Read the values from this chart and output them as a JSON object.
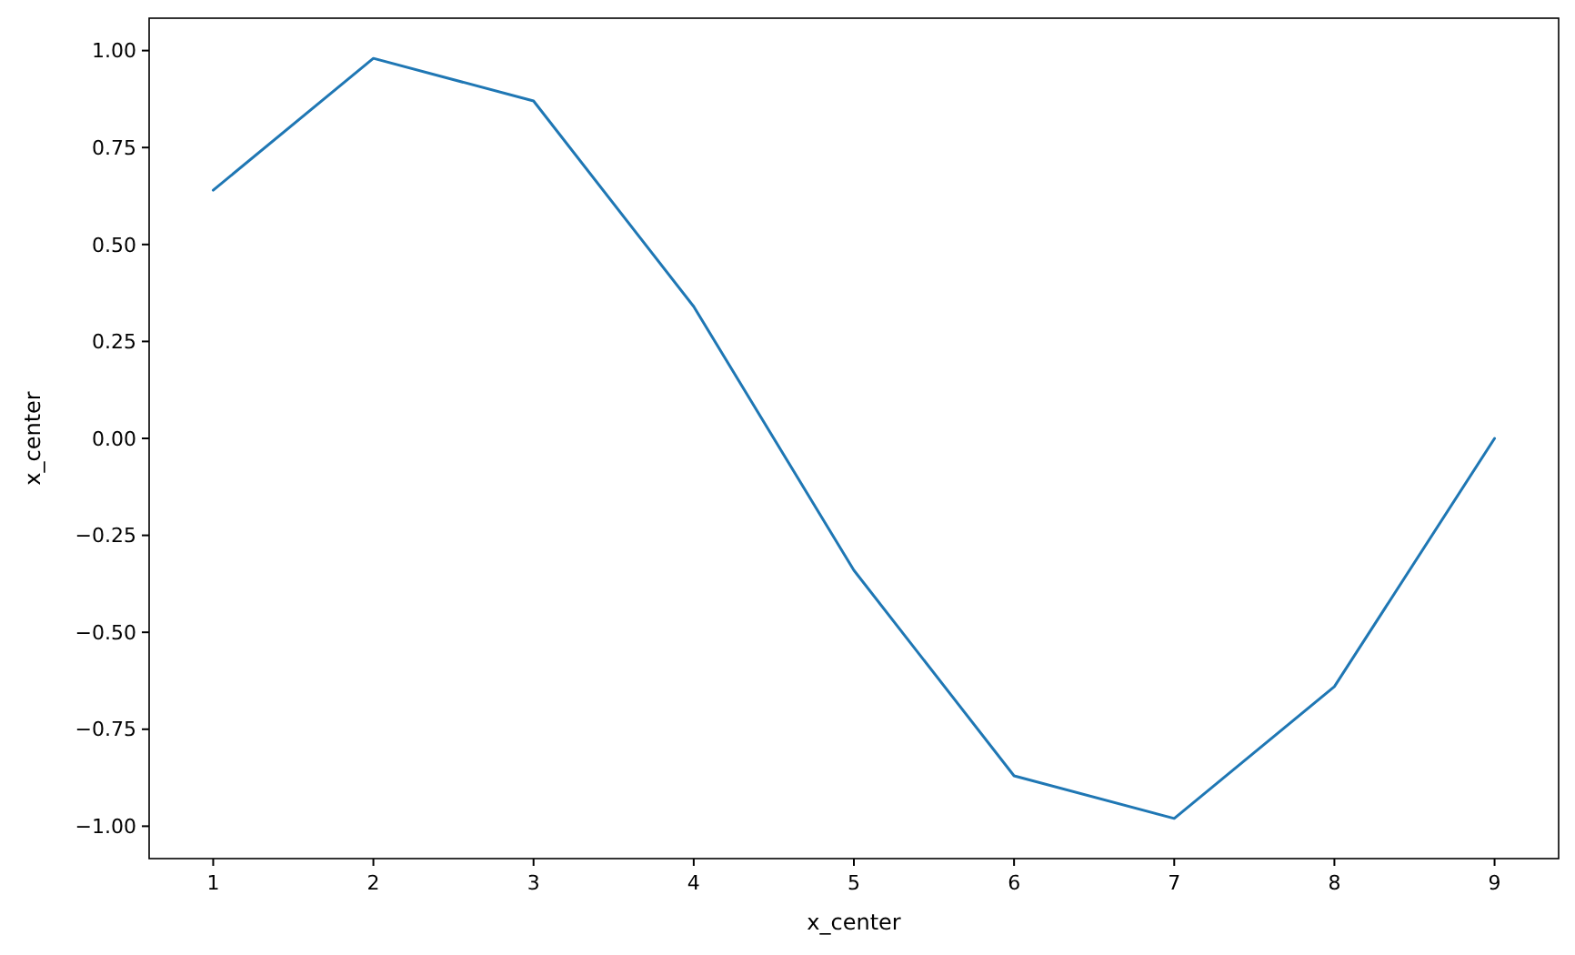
{
  "chart_data": {
    "type": "line",
    "xlabel": "x_center",
    "ylabel": "x_center",
    "x": [
      1,
      2,
      3,
      4,
      5,
      6,
      7,
      8,
      9
    ],
    "series": [
      {
        "color": "#1f77b4",
        "values": [
          0.64,
          0.98,
          0.87,
          0.34,
          -0.34,
          -0.87,
          -0.98,
          -0.64,
          0.0
        ]
      }
    ],
    "xlim": [
      0.6,
      9.4
    ],
    "xticks": [
      1,
      2,
      3,
      4,
      5,
      6,
      7,
      8,
      9
    ],
    "ylim": [
      -1.0835,
      1.0835
    ],
    "yticks": [
      {
        "value": -1,
        "label": "−1.00"
      },
      {
        "value": -0.75,
        "label": "−0.75"
      },
      {
        "value": -0.5,
        "label": "−0.50"
      },
      {
        "value": -0.25,
        "label": "−0.25"
      },
      {
        "value": 0,
        "label": "0.00"
      },
      {
        "value": 0.25,
        "label": "0.25"
      },
      {
        "value": 0.5,
        "label": "0.50"
      },
      {
        "value": 0.75,
        "label": "0.75"
      },
      {
        "value": 1,
        "label": "1.00"
      }
    ],
    "grid": false,
    "marker": "none",
    "line_style": "solid"
  }
}
